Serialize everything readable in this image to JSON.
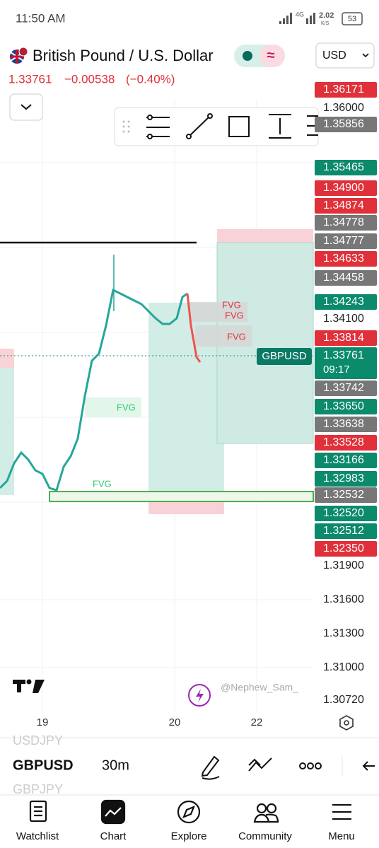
{
  "status_bar": {
    "time": "11:50 AM",
    "network": "4G",
    "speed": "2.02",
    "speed_unit": "K/S",
    "battery": "53"
  },
  "header": {
    "title": "British Pound / U.S. Dollar",
    "approx_symbol": "≈",
    "currency": "USD"
  },
  "quote": {
    "price": "1.33761",
    "change": "−0.00538",
    "change_percent": "(−0.40%)"
  },
  "chart": {
    "price_labels": [
      {
        "text": "1.36171",
        "style": "red"
      },
      {
        "text": "1.36000",
        "style": "plain"
      },
      {
        "text": "1.35856",
        "style": "gray"
      },
      {
        "text": "1.35465",
        "style": "green"
      },
      {
        "text": "1.34900",
        "style": "red"
      },
      {
        "text": "1.34874",
        "style": "red"
      },
      {
        "text": "1.34778",
        "style": "gray"
      },
      {
        "text": "1.34777",
        "style": "gray"
      },
      {
        "text": "1.34633",
        "style": "red"
      },
      {
        "text": "1.34458",
        "style": "gray"
      },
      {
        "text": "1.34243",
        "style": "green"
      },
      {
        "text": "1.34100",
        "style": "plain"
      },
      {
        "text": "1.33814",
        "style": "red"
      },
      {
        "text": "1.33761",
        "style": "green"
      },
      {
        "text": "1.33742",
        "style": "gray"
      },
      {
        "text": "1.33650",
        "style": "green"
      },
      {
        "text": "1.33638",
        "style": "gray"
      },
      {
        "text": "1.33528",
        "style": "red"
      },
      {
        "text": "1.33166",
        "style": "green"
      },
      {
        "text": "1.32983",
        "style": "green"
      },
      {
        "text": "1.32532",
        "style": "gray"
      },
      {
        "text": "1.32520",
        "style": "green"
      },
      {
        "text": "1.32512",
        "style": "green"
      },
      {
        "text": "1.32350",
        "style": "red"
      },
      {
        "text": "1.31900",
        "style": "plain"
      },
      {
        "text": "1.31600",
        "style": "plain"
      },
      {
        "text": "1.31300",
        "style": "plain"
      },
      {
        "text": "1.31000",
        "style": "plain"
      },
      {
        "text": "1.30720",
        "style": "plain"
      }
    ],
    "countdown": "09:17",
    "symbol_label": "GBPUSD",
    "fvg_labels": [
      {
        "text": "FVG",
        "color": "red"
      },
      {
        "text": "FVG",
        "color": "red"
      },
      {
        "text": "FVG",
        "color": "red"
      },
      {
        "text": "FVG",
        "color": "green"
      },
      {
        "text": "FVG",
        "color": "green"
      }
    ],
    "watermark": "@Nephew_Sam_",
    "x_labels": [
      "19",
      "20",
      "22"
    ]
  },
  "bottom": {
    "prev_symbol": "USDJPY",
    "symbol": "GBPUSD",
    "interval": "30m",
    "next_symbol": "GBPJPY"
  },
  "nav": [
    "Watchlist",
    "Chart",
    "Explore",
    "Community",
    "Menu"
  ]
}
